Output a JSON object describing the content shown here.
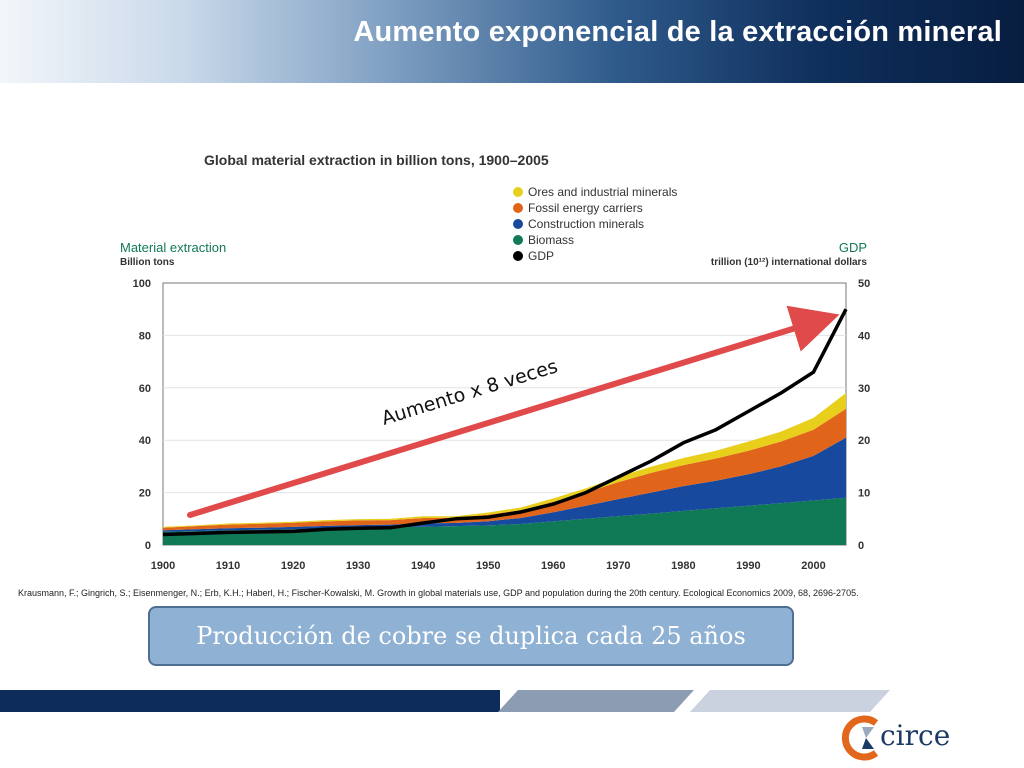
{
  "slide": {
    "title": "Aumento exponencial de la extracción mineral"
  },
  "citation": "Krausmann, F.; Gingrich, S.; Eisenmenger, N.; Erb, K.H.; Haberl, H.; Fischer-Kowalski, M. Growth in global materials use, GDP and population during the 20th century. Ecological Economics 2009, 68, 2696-2705.",
  "callout": "Producción de cobre se duplica cada 25  años",
  "annotation": "Aumento x 8 veces",
  "logo": {
    "text": "circe"
  },
  "colors": {
    "biomass": "#0f7a55",
    "construction": "#174a9e",
    "fossil": "#e0651b",
    "ores": "#e8cf1c",
    "gdp": "#000000",
    "arrow": "#e04a4a",
    "header_dark": "#0f2f5c",
    "callout_bg": "#8fb1d3",
    "logo_orange": "#e2661c"
  },
  "chart_data": {
    "type": "area",
    "title": "Global material extraction in billion tons, 1900–2005",
    "ylabel": "Material extraction",
    "ylabel_unit": "Billion tons",
    "y2label": "GDP",
    "y2label_unit": "trillion (10¹²) international dollars",
    "xlim": [
      1900,
      2005
    ],
    "ylim": [
      0,
      100
    ],
    "y2lim": [
      0,
      50
    ],
    "x_ticks": [
      1900,
      1910,
      1920,
      1930,
      1940,
      1950,
      1960,
      1970,
      1980,
      1990,
      2000
    ],
    "y_ticks": [
      0,
      20,
      40,
      60,
      80,
      100
    ],
    "y2_ticks": [
      0,
      10,
      20,
      30,
      40,
      50
    ],
    "legend_position": "top-center",
    "x": [
      1900,
      1905,
      1910,
      1915,
      1920,
      1925,
      1930,
      1935,
      1940,
      1945,
      1950,
      1955,
      1960,
      1965,
      1970,
      1975,
      1980,
      1985,
      1990,
      1995,
      2000,
      2005
    ],
    "series": [
      {
        "name": "Ores and industrial minerals",
        "key": "ores",
        "axis": "left",
        "stacked": true,
        "values": [
          0.3,
          0.3,
          0.4,
          0.4,
          0.4,
          0.5,
          0.5,
          0.5,
          0.7,
          0.6,
          0.8,
          1.0,
          1.3,
          1.6,
          2.0,
          2.4,
          2.7,
          3.0,
          3.5,
          3.8,
          4.5,
          6.0
        ]
      },
      {
        "name": "Fossil energy carriers",
        "key": "fossil",
        "axis": "left",
        "stacked": true,
        "values": [
          1.0,
          1.2,
          1.4,
          1.5,
          1.6,
          1.7,
          1.8,
          1.7,
          2.0,
          2.0,
          2.5,
          3.0,
          4.0,
          5.0,
          6.5,
          7.5,
          8.0,
          8.5,
          9.0,
          9.5,
          10.0,
          11.0
        ]
      },
      {
        "name": "Construction minerals",
        "key": "construction",
        "axis": "left",
        "stacked": true,
        "values": [
          0.6,
          0.7,
          0.8,
          0.8,
          0.9,
          1.0,
          1.1,
          1.1,
          1.3,
          1.2,
          1.6,
          2.3,
          3.5,
          5.0,
          6.5,
          8.0,
          9.5,
          10.5,
          12.0,
          14.0,
          17.0,
          23.0
        ]
      },
      {
        "name": "Biomass",
        "key": "biomass",
        "axis": "left",
        "stacked": true,
        "values": [
          5.0,
          5.3,
          5.6,
          5.8,
          6.0,
          6.3,
          6.5,
          6.7,
          7.0,
          7.2,
          7.5,
          8.0,
          9.0,
          10.0,
          11.0,
          12.0,
          13.0,
          14.0,
          15.0,
          16.0,
          17.0,
          18.0
        ]
      },
      {
        "name": "GDP",
        "key": "gdp",
        "axis": "right",
        "stacked": false,
        "values": [
          2.0,
          2.2,
          2.4,
          2.5,
          2.6,
          3.0,
          3.2,
          3.3,
          4.2,
          5.0,
          5.3,
          6.3,
          7.8,
          10.0,
          13.0,
          16.0,
          19.5,
          22.0,
          25.5,
          29.0,
          33.0,
          45.0
        ]
      }
    ]
  }
}
